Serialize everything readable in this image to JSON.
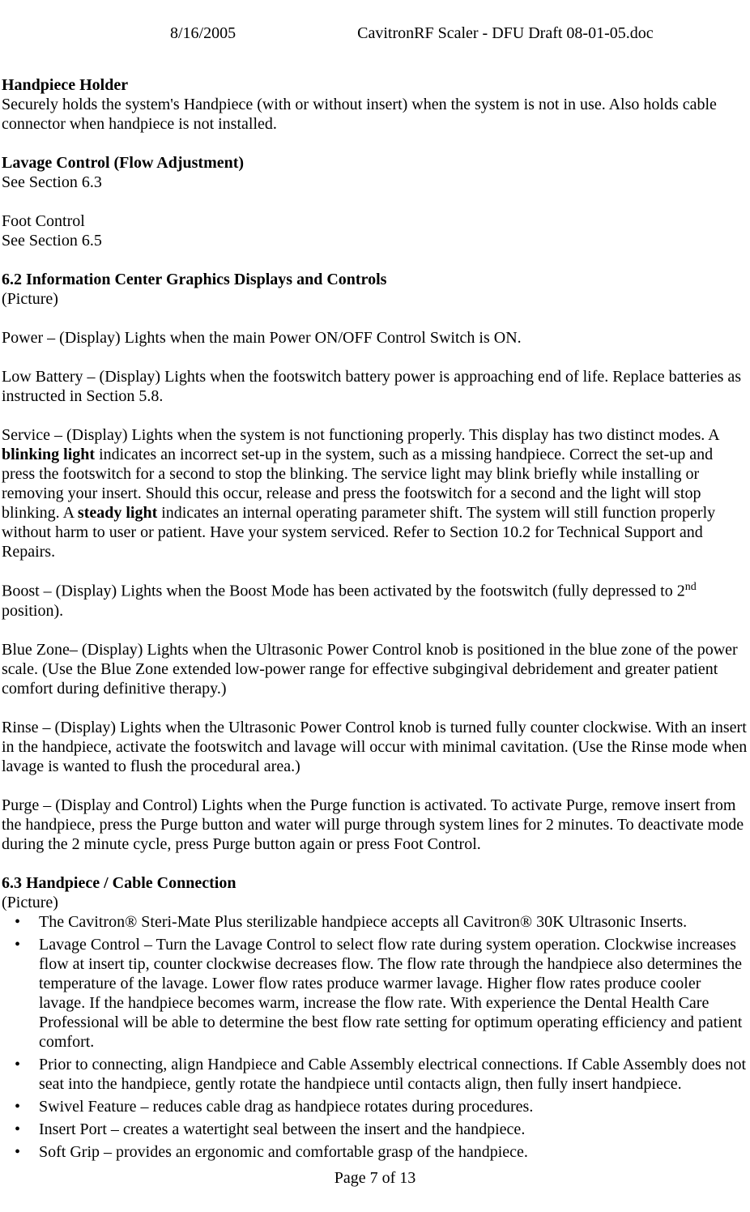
{
  "header": {
    "date": "8/16/2005",
    "doc_title": "CavitronRF Scaler - DFU Draft 08-01-05.doc"
  },
  "s1": {
    "heading": "Handpiece Holder",
    "body": "Securely holds the system's Handpiece (with or without insert) when the system is not in use.  Also holds cable connector when handpiece is not installed."
  },
  "s2": {
    "heading": "Lavage Control (Flow Adjustment)",
    "body": "See Section 6.3"
  },
  "s3": {
    "heading": "Foot Control",
    "body": "See Section 6.5"
  },
  "s4": {
    "heading": "6.2 Information Center Graphics Displays and Controls",
    "sub": "(Picture)"
  },
  "power": "Power – (Display) Lights when the main Power ON/OFF Control Switch is ON.",
  "lowbatt": "Low Battery – (Display) Lights when the footswitch battery power is approaching end of life.  Replace batteries as instructed in Section 5.8.",
  "service": {
    "p1": "Service – (Display) Lights when the system is not functioning properly.  This display has two distinct modes.  A ",
    "b1": "blinking light",
    "p2": " indicates an incorrect set-up in the system, such as a missing handpiece.  Correct the set-up and press the footswitch for a second to stop the blinking.  The service light may blink briefly while installing or removing your insert.  Should this occur, release and press the footswitch for a second and the light will stop blinking.  A ",
    "b2": "steady light",
    "p3": " indicates an internal operating parameter shift.  The system will still function properly without harm to user or patient.    Have your system serviced.  Refer to Section 10.2 for Technical Support and Repairs."
  },
  "boost": {
    "p1": "Boost – (Display) Lights when the Boost Mode has been activated by the footswitch (fully depressed to 2",
    "sup": "nd",
    "p2": " position)."
  },
  "bluezone": "Blue Zone–  (Display) Lights when the Ultrasonic Power Control knob is positioned in the blue zone of the power scale.  (Use the Blue Zone extended low-power range for effective subgingival debridement and greater patient comfort during definitive therapy.)",
  "rinse": "Rinse – (Display) Lights when the Ultrasonic Power Control knob is turned fully counter clockwise.  With an insert in the handpiece, activate the footswitch and lavage will occur with minimal cavitation.  (Use the Rinse mode when lavage is wanted to flush the procedural area.)",
  "purge": "Purge – (Display and Control) Lights when the Purge function is activated.  To activate Purge, remove insert from the handpiece, press the Purge button and water will purge through system lines for 2 minutes.  To deactivate mode during the 2 minute cycle, press Purge button again or press Foot Control.",
  "s63": {
    "heading": "6.3 Handpiece / Cable Connection",
    "sub": "(Picture)"
  },
  "bullets": {
    "b1": "The Cavitron® Steri-Mate Plus sterilizable handpiece accepts all Cavitron® 30K Ultrasonic Inserts.",
    "b2": "Lavage Control – Turn the Lavage Control to select flow rate during system operation.  Clockwise increases flow at insert tip, counter clockwise decreases flow.  The flow rate through the handpiece also determines the temperature of the lavage.  Lower flow rates produce warmer lavage.  Higher flow rates produce cooler lavage.  If the handpiece becomes warm, increase the flow rate. With experience the Dental Health Care Professional will be able to determine the best flow rate setting for optimum operating efficiency and patient comfort.",
    "b3": "Prior to connecting, align Handpiece and Cable Assembly electrical connections.  If Cable Assembly does not seat into the handpiece, gently rotate the handpiece until contacts align, then fully insert handpiece.",
    "b4": "Swivel Feature – reduces cable drag as handpiece rotates during procedures.",
    "b5": "Insert Port – creates a watertight seal between the insert and the handpiece.",
    "b6": "Soft Grip – provides an ergonomic and comfortable grasp of the handpiece."
  },
  "footer": "Page 7 of 13"
}
